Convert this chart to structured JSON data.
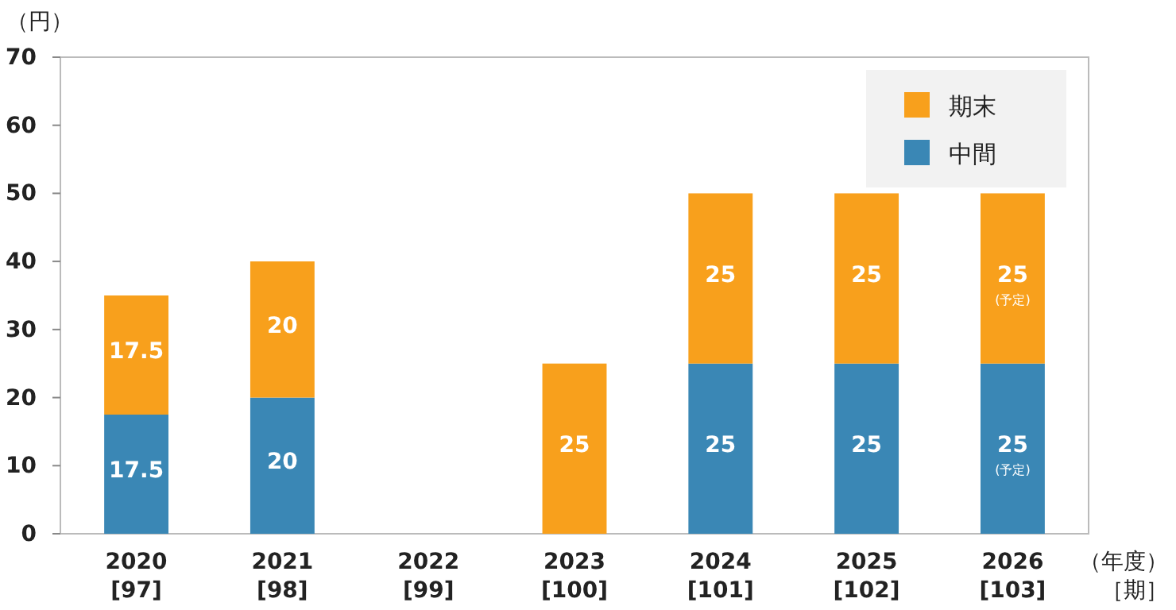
{
  "chart_data": {
    "type": "bar",
    "stacked": true,
    "ylabel": "（円）",
    "xlabel": "（年度）",
    "categories": [
      "2020\n[97]",
      "2021\n[98]",
      "2022\n[99]",
      "2023\n[100]",
      "2024\n[101]",
      "2025\n[102]",
      "2026\n[103]"
    ],
    "series": [
      {
        "name": "中間",
        "color": "#3a87b5",
        "values": [
          17.5,
          20,
          null,
          null,
          25,
          25,
          25
        ],
        "value_labels": [
          "17.5",
          "20",
          null,
          null,
          "25",
          "25",
          "25\n(予定)"
        ]
      },
      {
        "name": "期末",
        "color": "#f8a01c",
        "values": [
          17.5,
          20,
          null,
          25,
          25,
          25,
          25
        ],
        "value_labels": [
          "17.5",
          "20",
          null,
          "25",
          "25",
          "25",
          "25\n(予定)"
        ]
      }
    ],
    "annotations": [
      "［期］"
    ],
    "ylim": [
      0,
      70
    ],
    "yticks": [
      0,
      10,
      20,
      30,
      40,
      50,
      60,
      70
    ],
    "grid": false,
    "legend": "top right"
  }
}
